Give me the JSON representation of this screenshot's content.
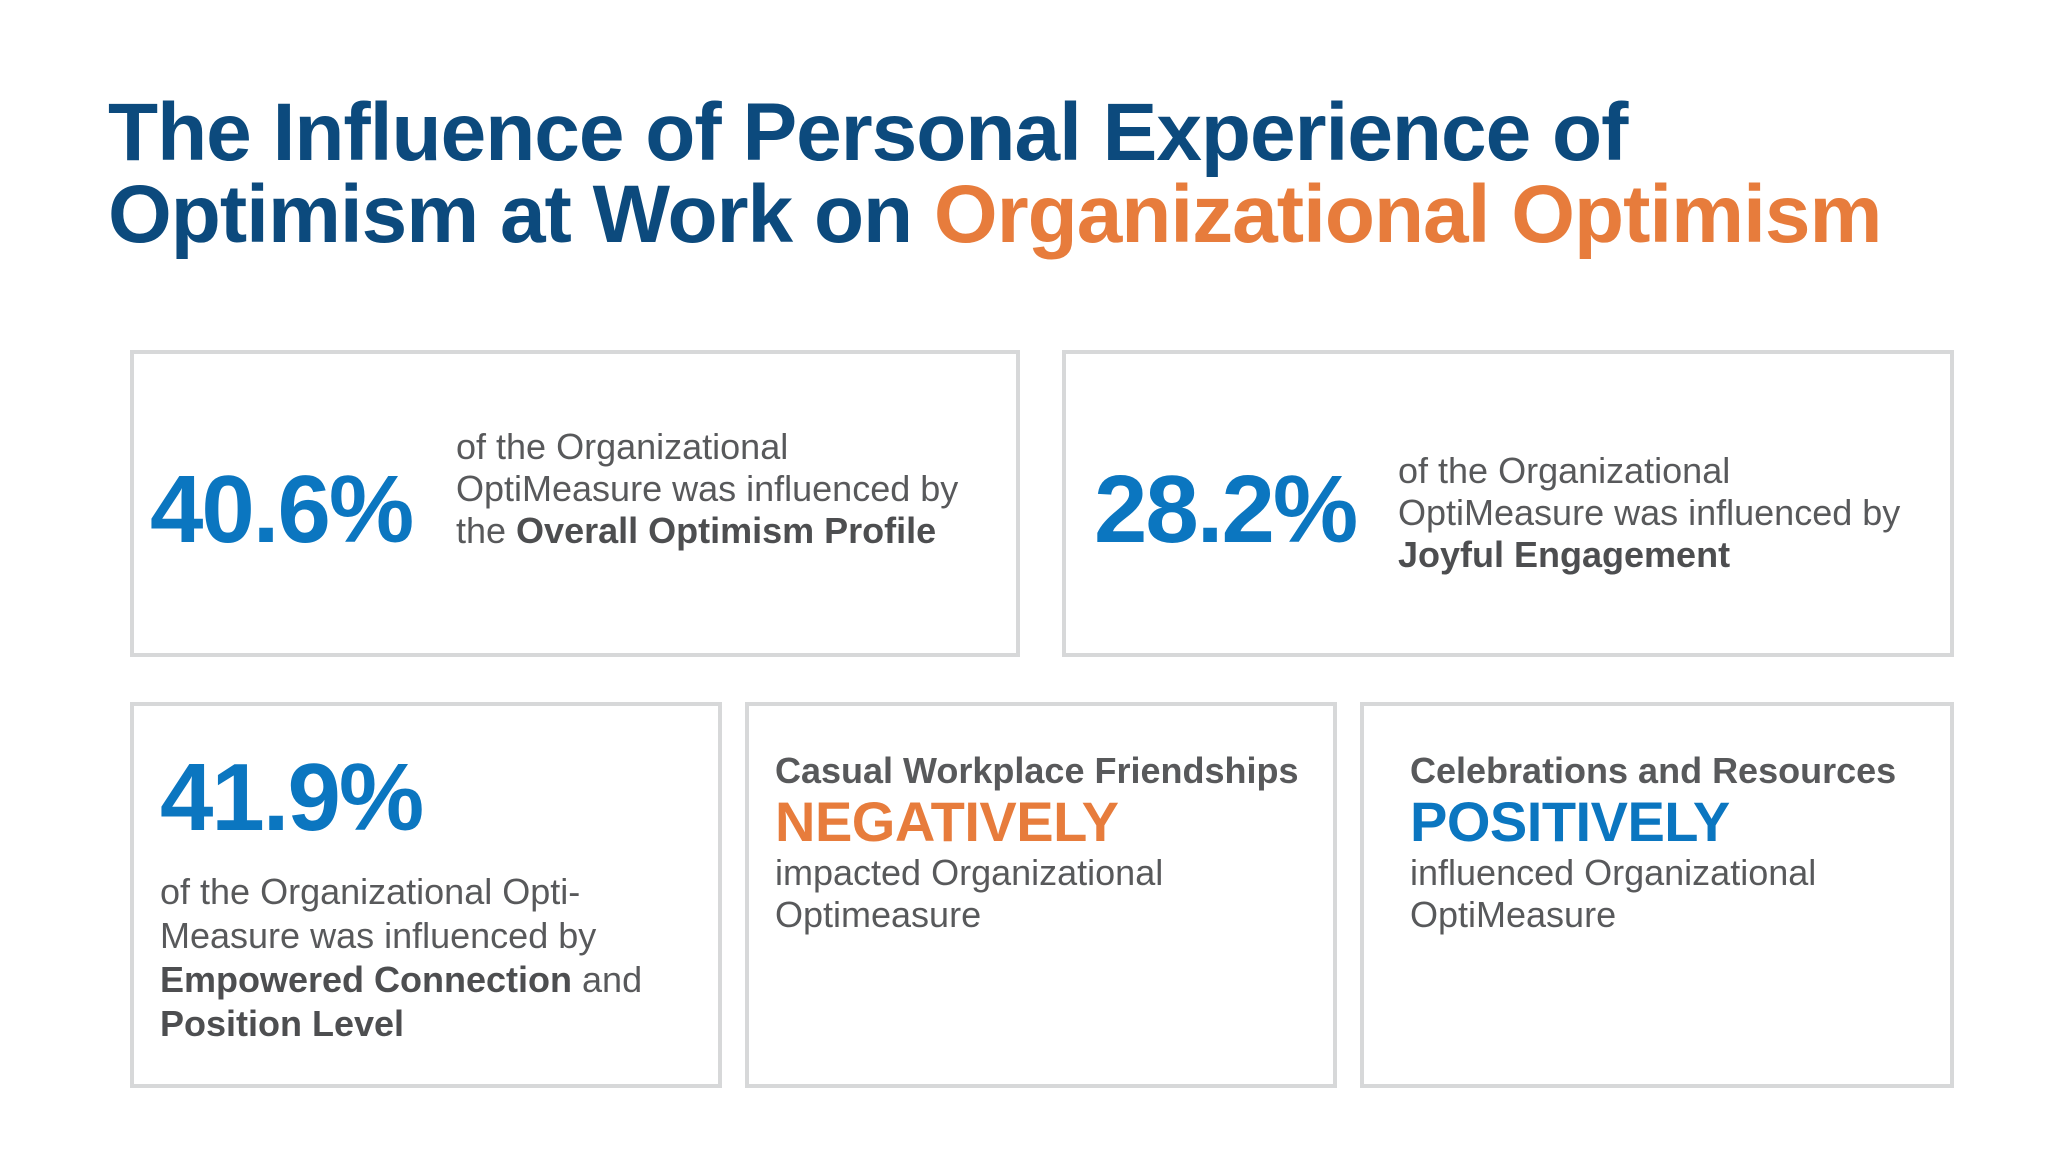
{
  "title": {
    "line1": "The Influence of Personal Experience of",
    "line2_prefix": "Optimism at Work on ",
    "line2_accent": "Organizational Optimism"
  },
  "cards": {
    "overall": {
      "stat": "40.6%",
      "text_before": "of the Organizational OptiMeasure was influenced by the ",
      "text_bold": "Overall Optimism Profile"
    },
    "joyful": {
      "stat": "28.2%",
      "text_before": "of the Organizational OptiMeasure was influenced by ",
      "text_bold": "Joyful Engagement"
    },
    "empowered": {
      "stat": "41.9%",
      "text_before": "of the Organizational Opti-Measure was influenced by ",
      "text_bold1": "Empowered Connection",
      "text_mid": " and ",
      "text_bold2": "Position Level"
    },
    "casual": {
      "lead": "Casual Workplace Friendships",
      "big_word": "NEGATIVELY",
      "trailing": "impacted Organizational Optimeasure"
    },
    "celebrations": {
      "lead": "Celebrations and Resources",
      "big_word": "POSITIVELY",
      "trailing": "influenced Organizational OptiMeasure"
    }
  },
  "colors": {
    "title_blue": "#0c4a7d",
    "accent_orange": "#e77c3c",
    "stat_blue": "#0b76c0",
    "body_gray": "#58595b",
    "border_gray": "#d7d8d9"
  }
}
